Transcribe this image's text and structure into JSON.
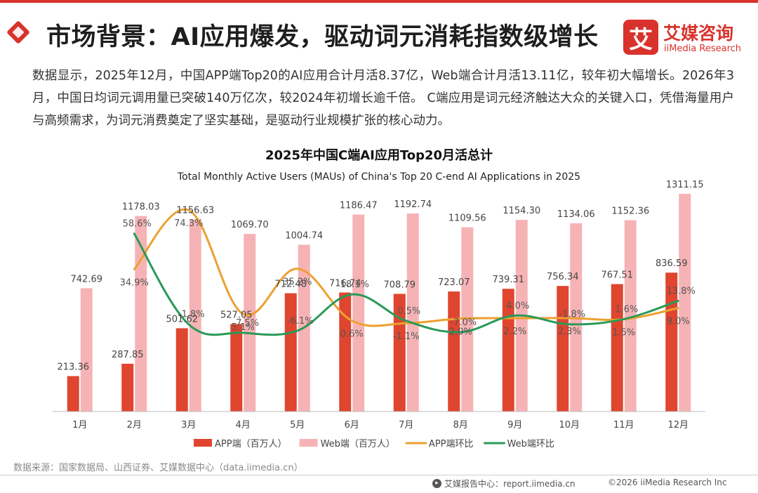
{
  "header": {
    "title": "市场背景：AI应用爆发，驱动词元消耗指数级增长",
    "brand_cn": "艾媒咨询",
    "brand_en": "iiMedia Research",
    "brand_icon_char": "艾"
  },
  "intro": {
    "text": "数据显示，2025年12月，中国APP端Top20的AI应用合计月活8.37亿，Web端合计月活13.11亿，较年初大幅增长。2026年3月，中国日均词元调用量已突破140万亿次，较2024年初增长逾千倍。 C端应用是词元经济触达大众的关键入口，凭借海量用户与高频需求，为词元消费奠定了坚实基础，是驱动行业规模扩张的核心动力。"
  },
  "chart_data": {
    "type": "bar",
    "title": "2025年中国C端AI应用Top20月活总计",
    "subtitle": "Total Monthly Active Users (MAUs) of China's Top 20 C-end AI Applications in 2025",
    "categories": [
      "1月",
      "2月",
      "3月",
      "4月",
      "5月",
      "6月",
      "7月",
      "8月",
      "9月",
      "10月",
      "11月",
      "12月"
    ],
    "series": [
      {
        "name": "APP端（百万人）",
        "kind": "bar",
        "axis": "left",
        "color": "#e0452f",
        "values": [
          213.36,
          287.85,
          501.62,
          527.05,
          712.48,
          716.74,
          708.79,
          723.07,
          739.31,
          756.34,
          767.51,
          836.59
        ],
        "labels": [
          "213.36",
          "287.85",
          "501.62",
          "527.05",
          "712.48",
          "716.74",
          "708.79",
          "723.07",
          "739.31",
          "756.34",
          "767.51",
          "836.59"
        ]
      },
      {
        "name": "Web端（百万人）",
        "kind": "bar",
        "axis": "left",
        "color": "#f6b3b5",
        "values": [
          742.69,
          1178.03,
          1156.63,
          1069.7,
          1004.74,
          1186.47,
          1192.74,
          1109.56,
          1154.3,
          1134.06,
          1152.36,
          1311.15
        ],
        "labels": [
          "742.69",
          "1178.03",
          "1156.63",
          "1069.70",
          "1004.74",
          "1186.47",
          "1192.74",
          "1109.56",
          "1154.30",
          "1134.06",
          "1152.36",
          "1311.15"
        ]
      },
      {
        "name": "APP端环比",
        "kind": "line",
        "axis": "right",
        "color": "#eda030",
        "values": [
          null,
          34.9,
          74.3,
          5.1,
          35.2,
          0.6,
          -1.1,
          2.0,
          2.2,
          2.3,
          1.5,
          9.0
        ],
        "labels": [
          null,
          "34.9%",
          "74.3%",
          "5.1%",
          "35.2%",
          "0.6%",
          "-1.1%",
          "2.0%",
          "2.2%",
          "2.3%",
          "1.5%",
          "9.0%"
        ]
      },
      {
        "name": "Web端环比",
        "kind": "line",
        "axis": "right",
        "color": "#2a9a58",
        "values": [
          null,
          58.6,
          -1.8,
          -7.5,
          -6.1,
          18.1,
          0.5,
          -7.0,
          4.0,
          -1.8,
          1.6,
          13.8
        ],
        "labels": [
          null,
          "58.6%",
          "-1.8%",
          "-7.5%",
          "-6.1%",
          "18.1%",
          "0.5%",
          "-7.0%",
          "4.0%",
          "-1.8%",
          "1.6%",
          "13.8%"
        ]
      }
    ],
    "ylim_left": [
      0,
      1400
    ],
    "ylim_right": [
      -60,
      95
    ],
    "legend": [
      "APP端（百万人）",
      "Web端（百万人）",
      "APP端环比",
      "Web端环比"
    ],
    "legend_position": "bottom",
    "grid": false
  },
  "footer": {
    "source": "数据来源：国家数据局、山西证券、艾媒数据中心（data.iimedia.cn）",
    "report_center": "艾媒报告中心：report.iimedia.cn",
    "copyright": "©2026  iiMedia Research  Inc"
  }
}
